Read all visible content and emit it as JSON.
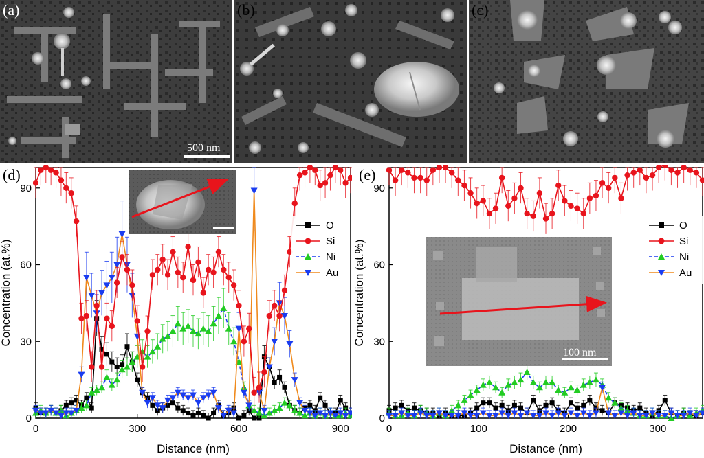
{
  "panels": {
    "a": {
      "label": "(a)",
      "scale_bar": "500 nm"
    },
    "b": {
      "label": "(b)"
    },
    "c": {
      "label": "(c)"
    }
  },
  "colors": {
    "O": "#000000",
    "Si": "#e8141c",
    "Ni": "#22cc22",
    "Au": "#1a3cf0",
    "Au_line": "#f08a1c",
    "arrow": "#e8141c"
  },
  "chart_data": [
    {
      "panel": "(d)",
      "type": "line",
      "xlabel": "Distance (nm)",
      "ylabel": "Concentration (at.%)",
      "xlim": [
        0,
        930
      ],
      "ylim": [
        0,
        98
      ],
      "xticks": [
        "0",
        "300",
        "600",
        "900"
      ],
      "yticks": [
        "0",
        "30",
        "60",
        "90"
      ],
      "legend": [
        "O",
        "Si",
        "Ni",
        "Au"
      ],
      "legend_position": "right",
      "inset": {
        "scale_bar": ""
      },
      "series": [
        {
          "name": "Si",
          "x": [
            0,
            15,
            30,
            45,
            60,
            75,
            90,
            105,
            120,
            135,
            150,
            165,
            180,
            195,
            210,
            225,
            240,
            255,
            270,
            285,
            300,
            315,
            330,
            345,
            360,
            375,
            390,
            405,
            420,
            435,
            450,
            465,
            480,
            495,
            510,
            525,
            540,
            555,
            570,
            585,
            600,
            615,
            630,
            645,
            660,
            675,
            690,
            705,
            720,
            735,
            750,
            765,
            780,
            795,
            810,
            825,
            840,
            855,
            870,
            885,
            900,
            915,
            930
          ],
          "values": [
            92,
            97,
            98,
            97,
            96,
            93,
            90,
            88,
            77,
            39,
            40,
            20,
            44,
            20,
            39,
            36,
            53,
            63,
            58,
            52,
            38,
            20,
            34,
            56,
            58,
            62,
            56,
            65,
            57,
            55,
            67,
            54,
            61,
            49,
            58,
            57,
            65,
            58,
            55,
            52,
            44,
            30,
            35,
            10,
            12,
            18,
            40,
            44,
            40,
            50,
            65,
            84,
            95,
            96,
            98,
            97,
            91,
            92,
            95,
            98,
            97,
            92,
            94
          ]
        },
        {
          "name": "Ni",
          "x": [
            0,
            15,
            30,
            45,
            60,
            75,
            90,
            105,
            120,
            135,
            150,
            165,
            180,
            195,
            210,
            225,
            240,
            255,
            270,
            285,
            300,
            315,
            330,
            345,
            360,
            375,
            390,
            405,
            420,
            435,
            450,
            465,
            480,
            495,
            510,
            525,
            540,
            555,
            570,
            585,
            600,
            615,
            630,
            645,
            660,
            675,
            690,
            705,
            720,
            735,
            750,
            765,
            780,
            795,
            810,
            825,
            840,
            855,
            870,
            885,
            900,
            915,
            930
          ],
          "values": [
            2,
            3,
            2,
            3,
            2,
            3,
            1,
            2,
            3,
            4,
            5,
            10,
            11,
            12,
            16,
            13,
            15,
            19,
            20,
            22,
            24,
            26,
            24,
            26,
            28,
            31,
            32,
            34,
            37,
            35,
            36,
            34,
            33,
            35,
            34,
            37,
            40,
            43,
            35,
            30,
            22,
            12,
            5,
            3,
            2,
            1,
            2,
            3,
            4,
            6,
            5,
            3,
            2,
            1,
            2,
            1,
            2,
            1,
            2,
            1,
            1,
            2,
            1
          ]
        },
        {
          "name": "Au",
          "x": [
            0,
            15,
            30,
            45,
            60,
            75,
            90,
            105,
            120,
            135,
            150,
            165,
            180,
            195,
            210,
            225,
            240,
            255,
            270,
            285,
            300,
            315,
            330,
            345,
            360,
            375,
            390,
            405,
            420,
            435,
            450,
            465,
            480,
            495,
            510,
            525,
            540,
            555,
            570,
            585,
            600,
            615,
            630,
            645,
            660,
            675,
            690,
            705,
            720,
            735,
            750,
            765,
            780,
            795,
            810,
            825,
            840,
            855,
            870,
            885,
            900,
            915,
            930
          ],
          "values": [
            3,
            2,
            2,
            3,
            2,
            1,
            2,
            2,
            3,
            17,
            55,
            48,
            41,
            49,
            52,
            55,
            60,
            72,
            60,
            48,
            32,
            10,
            6,
            8,
            5,
            4,
            7,
            8,
            10,
            9,
            8,
            9,
            6,
            8,
            9,
            10,
            4,
            1,
            3,
            2,
            35,
            10,
            5,
            89,
            10,
            3,
            20,
            30,
            45,
            40,
            29,
            15,
            6,
            3,
            2,
            1,
            2,
            1,
            2,
            1,
            2,
            1,
            2
          ]
        },
        {
          "name": "O",
          "x": [
            0,
            15,
            30,
            45,
            60,
            75,
            90,
            105,
            120,
            135,
            150,
            165,
            180,
            195,
            210,
            225,
            240,
            255,
            270,
            285,
            300,
            315,
            330,
            345,
            360,
            375,
            390,
            405,
            420,
            435,
            450,
            465,
            480,
            495,
            510,
            525,
            540,
            555,
            570,
            585,
            600,
            615,
            630,
            645,
            660,
            675,
            690,
            705,
            720,
            735,
            750,
            765,
            780,
            795,
            810,
            825,
            840,
            855,
            870,
            885,
            900,
            915,
            930
          ],
          "values": [
            4,
            2,
            2,
            3,
            2,
            3,
            5,
            6,
            7,
            5,
            8,
            4,
            39,
            27,
            25,
            22,
            20,
            21,
            28,
            22,
            15,
            10,
            8,
            5,
            3,
            4,
            5,
            6,
            4,
            3,
            2,
            1,
            2,
            1,
            0,
            2,
            5,
            1,
            2,
            4,
            0,
            1,
            3,
            0,
            0,
            24,
            20,
            14,
            16,
            12,
            5,
            3,
            2,
            4,
            5,
            3,
            8,
            5,
            2,
            2,
            7,
            4,
            2
          ]
        }
      ]
    },
    {
      "panel": "(e)",
      "type": "line",
      "xlabel": "Distance (nm)",
      "ylabel": "Concentration (at.%)",
      "xlim": [
        0,
        350
      ],
      "ylim": [
        0,
        98
      ],
      "xticks": [
        "0",
        "100",
        "200",
        "300"
      ],
      "yticks": [
        "0",
        "30",
        "60",
        "90"
      ],
      "legend": [
        "O",
        "Si",
        "Ni",
        "Au"
      ],
      "legend_position": "right",
      "inset": {
        "scale_bar": "100 nm"
      },
      "series": [
        {
          "name": "Si",
          "x": [
            0,
            7,
            14,
            21,
            28,
            35,
            42,
            49,
            56,
            63,
            70,
            77,
            84,
            91,
            98,
            105,
            112,
            119,
            126,
            133,
            140,
            147,
            154,
            161,
            168,
            175,
            182,
            189,
            196,
            203,
            210,
            217,
            224,
            231,
            238,
            245,
            252,
            259,
            266,
            273,
            280,
            287,
            294,
            301,
            308,
            315,
            322,
            329,
            336,
            343,
            350
          ],
          "values": [
            97,
            93,
            97,
            96,
            94,
            94,
            93,
            97,
            98,
            98,
            96,
            93,
            91,
            88,
            84,
            85,
            80,
            82,
            94,
            83,
            86,
            90,
            80,
            79,
            88,
            78,
            80,
            91,
            85,
            83,
            82,
            80,
            86,
            87,
            92,
            90,
            94,
            86,
            95,
            96,
            97,
            94,
            95,
            98,
            99,
            97,
            96,
            98,
            97,
            96,
            93
          ]
        },
        {
          "name": "Ni",
          "x": [
            0,
            7,
            14,
            21,
            28,
            35,
            42,
            49,
            56,
            63,
            70,
            77,
            84,
            91,
            98,
            105,
            112,
            119,
            126,
            133,
            140,
            147,
            154,
            161,
            168,
            175,
            182,
            189,
            196,
            203,
            210,
            217,
            224,
            231,
            238,
            245,
            252,
            259,
            266,
            273,
            280,
            287,
            294,
            301,
            308,
            315,
            322,
            329,
            336,
            343,
            350
          ],
          "values": [
            2,
            1,
            1,
            2,
            1,
            3,
            2,
            1,
            2,
            1,
            3,
            5,
            7,
            9,
            11,
            13,
            14,
            12,
            10,
            13,
            14,
            15,
            18,
            14,
            12,
            14,
            14,
            11,
            10,
            12,
            11,
            13,
            14,
            15,
            13,
            8,
            6,
            4,
            3,
            2,
            1,
            1,
            2,
            1,
            1,
            0,
            1,
            2,
            1,
            2,
            3
          ]
        },
        {
          "name": "Au",
          "x": [
            0,
            7,
            14,
            21,
            28,
            35,
            42,
            49,
            56,
            63,
            70,
            77,
            84,
            91,
            98,
            105,
            112,
            119,
            126,
            133,
            140,
            147,
            154,
            161,
            168,
            175,
            182,
            189,
            196,
            203,
            210,
            217,
            224,
            231,
            238,
            245,
            252,
            259,
            266,
            273,
            280,
            287,
            294,
            301,
            308,
            315,
            322,
            329,
            336,
            343,
            350
          ],
          "values": [
            1,
            1,
            2,
            1,
            1,
            2,
            1,
            1,
            2,
            1,
            1,
            1,
            2,
            1,
            1,
            2,
            1,
            1,
            2,
            1,
            2,
            1,
            2,
            1,
            1,
            2,
            1,
            2,
            1,
            2,
            1,
            2,
            1,
            2,
            12,
            2,
            1,
            2,
            1,
            2,
            1,
            1,
            2,
            1,
            1,
            2,
            1,
            1,
            2,
            1,
            2
          ]
        },
        {
          "name": "O",
          "x": [
            0,
            7,
            14,
            21,
            28,
            35,
            42,
            49,
            56,
            63,
            70,
            77,
            84,
            91,
            98,
            105,
            112,
            119,
            126,
            133,
            140,
            147,
            154,
            161,
            168,
            175,
            182,
            189,
            196,
            203,
            210,
            217,
            224,
            231,
            238,
            245,
            252,
            259,
            266,
            273,
            280,
            287,
            294,
            301,
            308,
            315,
            322,
            329,
            336,
            343,
            350
          ],
          "values": [
            3,
            4,
            5,
            3,
            4,
            3,
            2,
            2,
            1,
            2,
            1,
            1,
            1,
            2,
            4,
            6,
            6,
            4,
            5,
            3,
            5,
            4,
            2,
            7,
            3,
            5,
            6,
            3,
            2,
            6,
            4,
            5,
            7,
            4,
            3,
            2,
            6,
            5,
            4,
            3,
            4,
            2,
            1,
            3,
            7,
            2,
            1,
            2,
            1,
            1,
            2
          ]
        }
      ]
    }
  ]
}
